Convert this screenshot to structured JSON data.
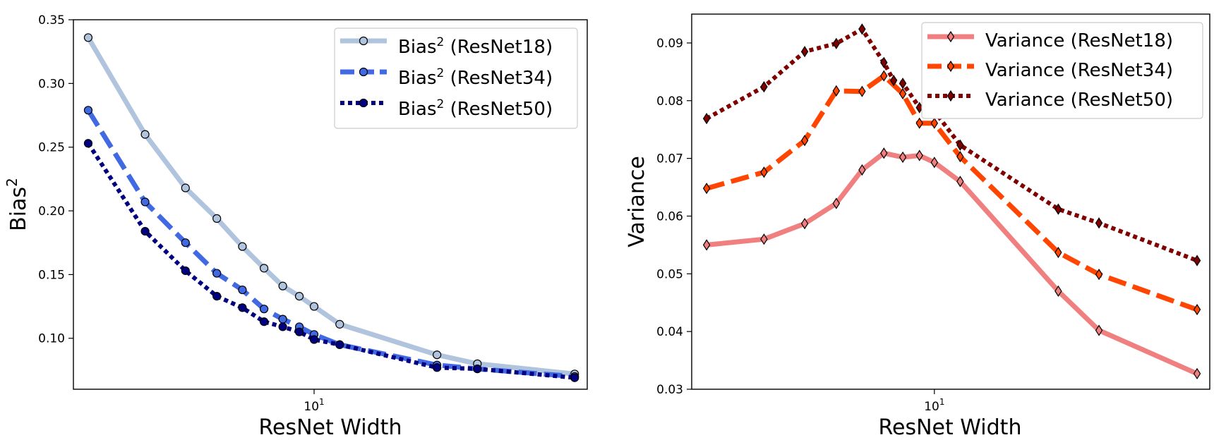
{
  "chart_data": [
    {
      "type": "line",
      "xlabel": "ResNet Width",
      "ylabel_base": "Bias",
      "ylabel_sup": "2",
      "xscale": "log",
      "xlim": [
        1.8,
        70
      ],
      "ylim": [
        0.06,
        0.35
      ],
      "yticks": [
        0.1,
        0.15,
        0.2,
        0.25,
        0.3,
        0.35
      ],
      "ytick_labels": [
        "0.10",
        "0.15",
        "0.20",
        "0.25",
        "0.30",
        "0.35"
      ],
      "xtick_value": 10,
      "xtick_base": "10",
      "xtick_exp": "1",
      "legend_position": "top-right",
      "x": [
        2,
        3,
        4,
        5,
        6,
        7,
        8,
        9,
        10,
        12,
        24,
        32,
        64
      ],
      "series": [
        {
          "label_base": "Bias",
          "label_sup": "2",
          "label_rest": " (ResNet18)",
          "color": "#b0c4de",
          "dash": "solid",
          "marker": "circle",
          "values": [
            0.336,
            0.26,
            0.218,
            0.194,
            0.172,
            0.155,
            0.141,
            0.133,
            0.125,
            0.111,
            0.087,
            0.08,
            0.072
          ]
        },
        {
          "label_base": "Bias",
          "label_sup": "2",
          "label_rest": " (ResNet34)",
          "color": "#4169e1",
          "dash": "dashed",
          "marker": "circle",
          "values": [
            0.279,
            0.207,
            0.175,
            0.151,
            0.138,
            0.123,
            0.115,
            0.109,
            0.103,
            0.095,
            0.079,
            0.076,
            0.07
          ]
        },
        {
          "label_base": "Bias",
          "label_sup": "2",
          "label_rest": " (ResNet50)",
          "color": "#000080",
          "dash": "dotted",
          "marker": "circle",
          "values": [
            0.253,
            0.184,
            0.153,
            0.133,
            0.124,
            0.113,
            0.109,
            0.105,
            0.099,
            0.095,
            0.077,
            0.076,
            0.069
          ]
        }
      ]
    },
    {
      "type": "line",
      "xlabel": "ResNet Width",
      "ylabel": "Variance",
      "xscale": "log",
      "xlim": [
        1.8,
        70
      ],
      "ylim": [
        0.03,
        0.095
      ],
      "yticks": [
        0.03,
        0.04,
        0.05,
        0.06,
        0.07,
        0.08,
        0.09
      ],
      "ytick_labels": [
        "0.03",
        "0.04",
        "0.05",
        "0.06",
        "0.07",
        "0.08",
        "0.09"
      ],
      "xtick_value": 10,
      "xtick_base": "10",
      "xtick_exp": "1",
      "legend_position": "top-right",
      "series": [
        {
          "name": "Variance (ResNet18)",
          "color": "#f08080",
          "dash": "solid",
          "marker": "diamond",
          "x": [
            2,
            3,
            4,
            5,
            6,
            7,
            8,
            9,
            10,
            12,
            24,
            32,
            64
          ],
          "values": [
            0.055,
            0.056,
            0.0587,
            0.0622,
            0.068,
            0.0709,
            0.0702,
            0.0705,
            0.0693,
            0.066,
            0.047,
            0.0402,
            0.0327
          ]
        },
        {
          "name": "Variance (ResNet34)",
          "color": "#ff4500",
          "dash": "dashed",
          "marker": "diamond",
          "x": [
            2,
            3,
            4,
            5,
            6,
            7,
            8,
            9,
            10,
            12,
            24,
            32,
            64
          ],
          "values": [
            0.0648,
            0.0676,
            0.0731,
            0.0817,
            0.0816,
            0.0843,
            0.0812,
            0.0761,
            0.0761,
            0.0703,
            0.0537,
            0.0499,
            0.0438
          ]
        },
        {
          "name": "Variance (ResNet50)",
          "color": "#800000",
          "dash": "dotted",
          "marker": "diamond",
          "x": [
            2,
            3,
            4,
            5,
            6,
            7,
            7.5,
            8,
            9,
            10,
            12,
            24,
            32,
            64
          ],
          "values": [
            0.0769,
            0.0824,
            0.0885,
            0.0899,
            0.0924,
            0.0866,
            0.0835,
            0.083,
            0.0788,
            0.0782,
            0.0723,
            0.0612,
            0.0588,
            0.0523
          ]
        }
      ]
    }
  ]
}
